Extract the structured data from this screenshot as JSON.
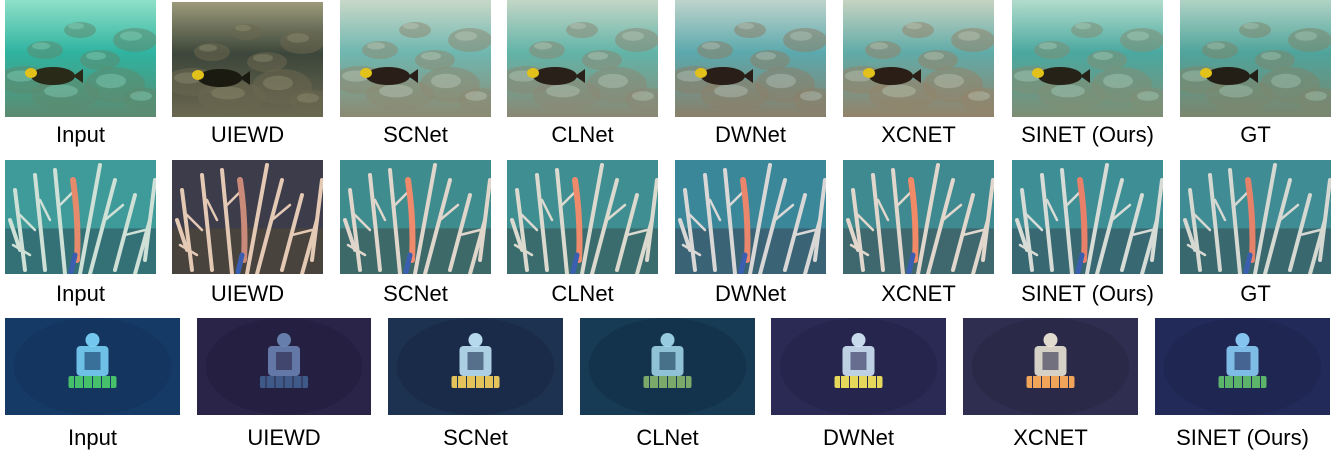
{
  "rows": [
    {
      "scene": "fish",
      "images": [
        {
          "caption": "Input",
          "colors": {
            "water": "#2fb3a0",
            "rock": "#5c8a70",
            "light": "#8fe0c8",
            "fish": "#2a2a18"
          }
        },
        {
          "caption": "UIEWD",
          "colors": {
            "water": "#3c463a",
            "rock": "#6b6850",
            "light": "#9c9a7a",
            "fish": "#1a1a10"
          }
        },
        {
          "caption": "SCNet",
          "colors": {
            "water": "#6fb7b0",
            "rock": "#8c8a72",
            "light": "#c9d8c8",
            "fish": "#2a1f18"
          }
        },
        {
          "caption": "CLNet",
          "colors": {
            "water": "#62b4a8",
            "rock": "#8a8874",
            "light": "#c3d6c6",
            "fish": "#2a201a"
          }
        },
        {
          "caption": "DWNet",
          "colors": {
            "water": "#5ba9ad",
            "rock": "#8a7f6a",
            "light": "#bfd3cc",
            "fish": "#2a1e18"
          }
        },
        {
          "caption": "XCNET",
          "colors": {
            "water": "#60aba8",
            "rock": "#93836a",
            "light": "#c6d3c2",
            "fish": "#2b1e16"
          }
        },
        {
          "caption": "SINET (Ours)",
          "colors": {
            "water": "#4aa8a0",
            "rock": "#7f8e74",
            "light": "#b2dccc",
            "fish": "#262218"
          }
        },
        {
          "caption": "GT",
          "colors": {
            "water": "#4fa49c",
            "rock": "#7b866e",
            "light": "#b0d3c4",
            "fish": "#241f16"
          }
        }
      ]
    },
    {
      "scene": "coral",
      "images": [
        {
          "caption": "Input",
          "colors": {
            "water": "#3f9a9a",
            "rock": "#2f5f66",
            "light": "#cfe0d6",
            "fish": "#e58a6a"
          }
        },
        {
          "caption": "UIEWD",
          "colors": {
            "water": "#3d3c4a",
            "rock": "#4f4638",
            "light": "#e4c9b4",
            "fish": "#c98a7a"
          }
        },
        {
          "caption": "SCNet",
          "colors": {
            "water": "#3f8c8e",
            "rock": "#3d5a5a",
            "light": "#e0d6cc",
            "fish": "#f08a6c"
          }
        },
        {
          "caption": "CLNet",
          "colors": {
            "water": "#3f8f92",
            "rock": "#3b5c5e",
            "light": "#dcd9cf",
            "fish": "#ee8b6d"
          }
        },
        {
          "caption": "DWNet",
          "colors": {
            "water": "#3a879a",
            "rock": "#3a5566",
            "light": "#dad8d6",
            "fish": "#ea866c"
          }
        },
        {
          "caption": "XCNET",
          "colors": {
            "water": "#3e8a90",
            "rock": "#3e5a60",
            "light": "#e2d7cc",
            "fish": "#f28a68"
          }
        },
        {
          "caption": "SINET (Ours)",
          "colors": {
            "water": "#3e8e96",
            "rock": "#365a62",
            "light": "#d8dcd6",
            "fish": "#e9806a"
          }
        },
        {
          "caption": "GT",
          "colors": {
            "water": "#3f8c94",
            "rock": "#37585e",
            "light": "#d6d8d2",
            "fish": "#e6826a"
          }
        }
      ]
    },
    {
      "scene": "robot",
      "images": [
        {
          "caption": "Input",
          "colors": {
            "water": "#163a66",
            "rock": "#10305a",
            "light": "#7fd8ff",
            "fish": "#46c06a"
          }
        },
        {
          "caption": "UIEWD",
          "colors": {
            "water": "#2a2548",
            "rock": "#1f1b3a",
            "light": "#6e88b8",
            "fish": "#3f5a88"
          }
        },
        {
          "caption": "SCNet",
          "colors": {
            "water": "#1d3150",
            "rock": "#152640",
            "light": "#c8ecff",
            "fish": "#e3c35a"
          }
        },
        {
          "caption": "CLNet",
          "colors": {
            "water": "#173a55",
            "rock": "#102c44",
            "light": "#a6dcef",
            "fish": "#7aa96a"
          }
        },
        {
          "caption": "DWNet",
          "colors": {
            "water": "#2b2a55",
            "rock": "#221f46",
            "light": "#d9f0ff",
            "fish": "#e6d85a"
          }
        },
        {
          "caption": "XCNET",
          "colors": {
            "water": "#2f2e50",
            "rock": "#252340",
            "light": "#f4eedd",
            "fish": "#f0a55a"
          }
        },
        {
          "caption": "SINET (Ours)",
          "colors": {
            "water": "#222a5a",
            "rock": "#1a2148",
            "light": "#8fd6ff",
            "fish": "#5cb46a"
          }
        }
      ]
    }
  ]
}
